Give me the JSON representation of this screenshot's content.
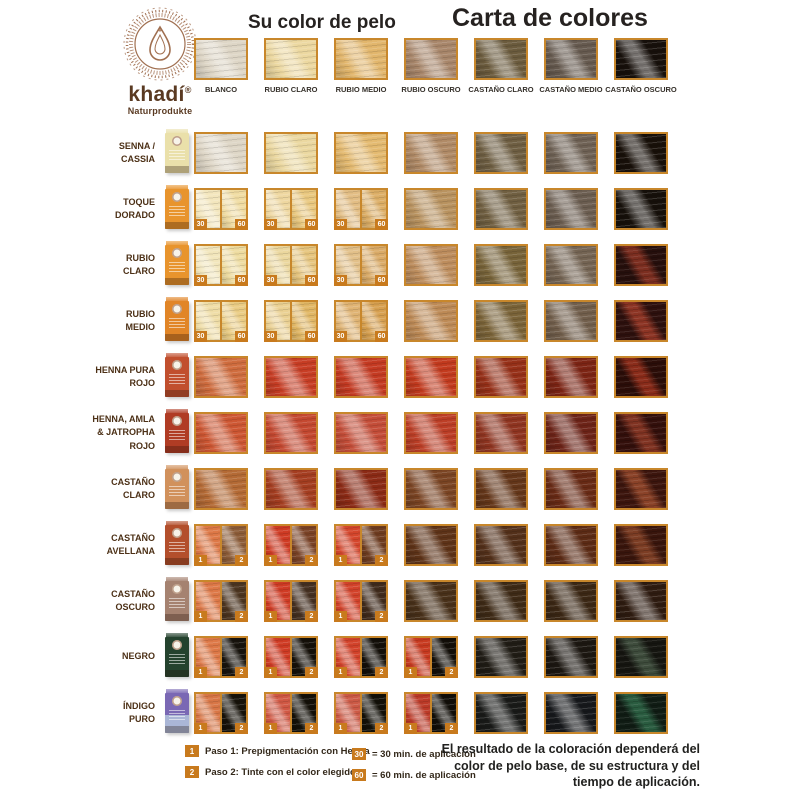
{
  "brand": {
    "name": "khadí",
    "reg": "®",
    "subtitle": "Naturprodukte"
  },
  "titles": {
    "your_color": "Su color de pelo",
    "chart": "Carta de colores"
  },
  "colors": {
    "border": "#c8872b",
    "badge": "#c87a1d",
    "logo": "#a06f50"
  },
  "base_row": [
    {
      "label": "BLANCO",
      "c": "#ded6c6"
    },
    {
      "label": "RUBIO CLARO",
      "c": "#ecd8a0"
    },
    {
      "label": "RUBIO MEDIO",
      "c": "#e2b66c"
    },
    {
      "label": "RUBIO OSCURO",
      "c": "#a8866a"
    },
    {
      "label": "CASTAÑO CLARO",
      "c": "#6b5b3d"
    },
    {
      "label": "CASTAÑO MEDIO",
      "c": "#665a4f"
    },
    {
      "label": "CASTAÑO OSCURO",
      "c": "#17100b"
    }
  ],
  "rows": [
    {
      "label": [
        "SENNA /",
        "CASSIA"
      ],
      "box": {
        "c": "#eae0aa"
      },
      "cells": [
        {
          "c": "#ded6c6"
        },
        {
          "c": "#ebd8a0"
        },
        {
          "c": "#e4ba70"
        },
        {
          "c": "#b08a66"
        },
        {
          "c": "#6e5e42"
        },
        {
          "c": "#6e6154"
        },
        {
          "c": "#181009"
        }
      ]
    },
    {
      "label": [
        "TOQUE",
        "DORADO"
      ],
      "box": {
        "c": "#e8942d"
      },
      "cells": [
        {
          "s": [
            "#f3e6bd",
            "#f0dca2"
          ],
          "b": [
            "30",
            "60"
          ]
        },
        {
          "s": [
            "#eed7a0",
            "#e9c87f"
          ],
          "b": [
            "30",
            "60"
          ]
        },
        {
          "s": [
            "#e2bd84",
            "#dcae66"
          ],
          "b": [
            "30",
            "60"
          ]
        },
        {
          "c": "#b8925f"
        },
        {
          "c": "#705f41"
        },
        {
          "c": "#6b5d50"
        },
        {
          "c": "#16100a"
        }
      ]
    },
    {
      "label": [
        "RUBIO",
        "CLARO"
      ],
      "box": {
        "c": "#e8942d"
      },
      "cells": [
        {
          "s": [
            "#f2e6bc",
            "#eedca0"
          ],
          "b": [
            "30",
            "60"
          ]
        },
        {
          "s": [
            "#ebd79e",
            "#e6c57e"
          ],
          "b": [
            "30",
            "60"
          ]
        },
        {
          "s": [
            "#e2c089",
            "#daab68"
          ],
          "b": [
            "30",
            "60"
          ]
        },
        {
          "c": "#bd8d5d"
        },
        {
          "c": "#776339"
        },
        {
          "c": "#746453"
        },
        {
          "c": "#260f0c",
          "h": "#7c2e20"
        }
      ]
    },
    {
      "label": [
        "RUBIO",
        "MEDIO"
      ],
      "box": {
        "c": "#e18527"
      },
      "cells": [
        {
          "s": [
            "#efdda6",
            "#eacc84"
          ],
          "b": [
            "30",
            "60"
          ]
        },
        {
          "s": [
            "#ead092",
            "#e1b765"
          ],
          "b": [
            "30",
            "60"
          ]
        },
        {
          "s": [
            "#dfb373",
            "#d7a050"
          ],
          "b": [
            "30",
            "60"
          ]
        },
        {
          "c": "#bd8a56"
        },
        {
          "c": "#7a6338"
        },
        {
          "c": "#715e4b"
        },
        {
          "c": "#2d100d",
          "h": "#8c3424"
        }
      ]
    },
    {
      "label": [
        "HENNA PURA",
        "ROJO"
      ],
      "box": {
        "c": "#c14f2e"
      },
      "cells": [
        {
          "c": "#cf6c3e"
        },
        {
          "c": "#c73d24"
        },
        {
          "c": "#c43a22"
        },
        {
          "c": "#c23a1e"
        },
        {
          "c": "#963018"
        },
        {
          "c": "#7c2414"
        },
        {
          "c": "#2b0d08",
          "h": "#8a2c1a"
        }
      ]
    },
    {
      "label": [
        "HENNA, AMLA",
        "& JATROPHA",
        "ROJO"
      ],
      "box": {
        "c": "#b03c24"
      },
      "cells": [
        {
          "c": "#cd5632"
        },
        {
          "c": "#c44830"
        },
        {
          "c": "#c44d38"
        },
        {
          "c": "#bc3e26"
        },
        {
          "c": "#8f3420"
        },
        {
          "c": "#6c2317"
        },
        {
          "c": "#330f0b",
          "h": "#803322"
        }
      ]
    },
    {
      "label": [
        "CASTAÑO",
        "CLARO"
      ],
      "box": {
        "c": "#d1915c"
      },
      "cells": [
        {
          "c": "#b46a35"
        },
        {
          "c": "#a43d20"
        },
        {
          "c": "#8b2a15"
        },
        {
          "c": "#7a4423"
        },
        {
          "c": "#643619"
        },
        {
          "c": "#682a15"
        },
        {
          "c": "#3c150d",
          "h": "#8a4228"
        }
      ]
    },
    {
      "label": [
        "CASTAÑO",
        "AVELLANA"
      ],
      "box": {
        "c": "#b34f2c"
      },
      "cells": [
        {
          "s": [
            "#dd7847",
            "#8c5c38"
          ],
          "b": [
            "1",
            "2"
          ]
        },
        {
          "s": [
            "#cf3b24",
            "#7a4226"
          ],
          "b": [
            "1",
            "2"
          ]
        },
        {
          "s": [
            "#d4462c",
            "#6e3c20"
          ],
          "b": [
            "1",
            "2"
          ]
        },
        {
          "c": "#5e3318"
        },
        {
          "c": "#53301a"
        },
        {
          "c": "#5c2b15"
        },
        {
          "c": "#39150c",
          "h": "#7c3d24"
        }
      ]
    },
    {
      "label": [
        "CASTAÑO",
        "OSCURO"
      ],
      "box": {
        "c": "#a58270"
      },
      "cells": [
        {
          "s": [
            "#dd7847",
            "#4c3520"
          ],
          "b": [
            "1",
            "2"
          ]
        },
        {
          "s": [
            "#cf3b24",
            "#453021"
          ],
          "b": [
            "1",
            "2"
          ]
        },
        {
          "s": [
            "#d2422a",
            "#402b1c"
          ],
          "b": [
            "1",
            "2"
          ]
        },
        {
          "c": "#483019"
        },
        {
          "c": "#3e2a16"
        },
        {
          "c": "#3b2714"
        },
        {
          "c": "#2e1b10"
        }
      ]
    },
    {
      "label": [
        "NEGRO"
      ],
      "box": {
        "c": "#24422e"
      },
      "cells": [
        {
          "s": [
            "#dd7847",
            "#17130d"
          ],
          "b": [
            "1",
            "2"
          ]
        },
        {
          "s": [
            "#cf3b24",
            "#151009"
          ],
          "b": [
            "1",
            "2"
          ]
        },
        {
          "s": [
            "#d2422a",
            "#130f09"
          ],
          "b": [
            "1",
            "2"
          ]
        },
        {
          "s": [
            "#c73a20",
            "#120e08"
          ],
          "b": [
            "1",
            "2"
          ]
        },
        {
          "c": "#201c15"
        },
        {
          "c": "#1c1711"
        },
        {
          "c": "#151510",
          "h": "#3e4c3c"
        }
      ]
    },
    {
      "label": [
        "ÍNDIGO",
        "PURO"
      ],
      "box": {
        "c": "#7a68b4",
        "c2": "#aab6d6"
      },
      "cells": [
        {
          "s": [
            "#d87646",
            "#161209"
          ],
          "b": [
            "1",
            "2"
          ]
        },
        {
          "s": [
            "#d05844",
            "#131008"
          ],
          "b": [
            "1",
            "2"
          ]
        },
        {
          "s": [
            "#cc5a46",
            "#121008"
          ],
          "b": [
            "1",
            "2"
          ]
        },
        {
          "s": [
            "#bc3a28",
            "#110e08"
          ],
          "b": [
            "1",
            "2"
          ]
        },
        {
          "c": "#191a18"
        },
        {
          "c": "#16181b"
        },
        {
          "c": "#101c14",
          "h": "#2a5c40"
        }
      ]
    }
  ],
  "legend": {
    "steps": [
      {
        "badge": "1",
        "text": "Paso 1: Prepigmentación con Henna"
      },
      {
        "badge": "2",
        "text": "Paso 2: Tinte con el color elegido"
      }
    ],
    "times": [
      {
        "badge": "30",
        "text": "= 30 min. de aplicación"
      },
      {
        "badge": "60",
        "text": "= 60 min. de aplicación"
      }
    ],
    "note": [
      "El resultado de la coloración dependerá del",
      "color de pelo base, de su estructura y del",
      "tiempo de aplicación."
    ]
  }
}
